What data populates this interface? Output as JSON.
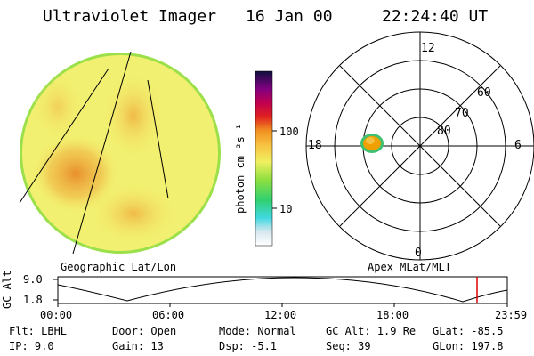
{
  "header": {
    "instrument": "Ultraviolet Imager",
    "date": "16 Jan 00",
    "time": "22:24:40 UT"
  },
  "colorbar": {
    "unit_label": "photon cm⁻²s⁻¹",
    "ticks": [
      "100",
      "10"
    ],
    "scale": "log"
  },
  "left_panel": {
    "caption": "Geographic Lat/Lon"
  },
  "right_panel": {
    "caption": "Apex MLat/MLT",
    "mlt_labels": {
      "top": "12",
      "left": "18",
      "right": "6",
      "bottom": "0"
    },
    "mlat_labels": [
      "60",
      "70",
      "80"
    ]
  },
  "altitude_plot": {
    "ylabel": "GC Alt",
    "yticks": [
      "9.0",
      "1.8"
    ],
    "xticks": [
      "00:00",
      "06:00",
      "12:00",
      "18:00",
      "23:59"
    ],
    "marker_color": "#e00000"
  },
  "info": {
    "flt": "Flt: LBHL",
    "ip": "IP:  9.0",
    "door": "Door: Open",
    "gain": "Gain: 13",
    "mode": "Mode: Normal",
    "dsp": "Dsp:   -5.1",
    "gcalt": "GC Alt: 1.9 Re",
    "seq": "Seq: 39",
    "glat": "GLat: -85.5",
    "glon": "GLon: 197.8"
  },
  "colors": {
    "disk_base": "#f2f070",
    "disk_hot": "#f0a030",
    "disk_edge": "#9be04a",
    "oval": "#f0a000",
    "oval_edge": "#40c070"
  }
}
